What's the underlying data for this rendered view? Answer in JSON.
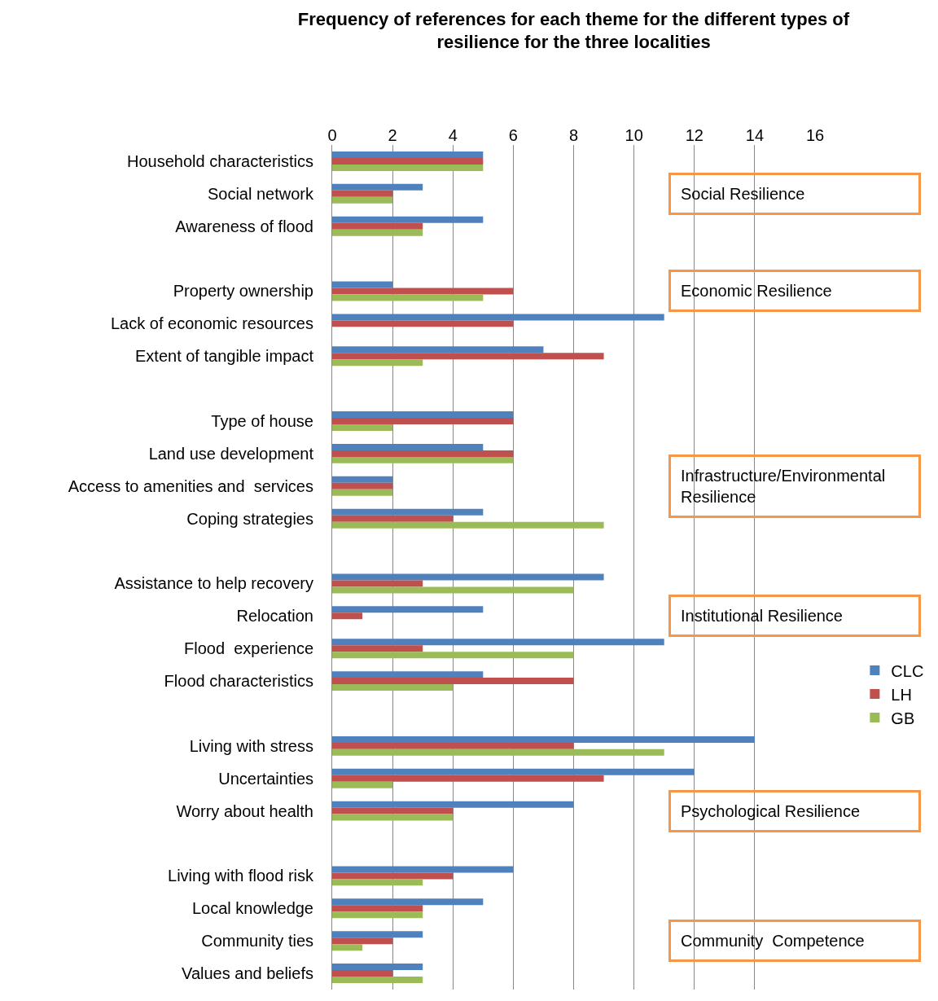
{
  "chart_data": {
    "type": "bar",
    "orientation": "horizontal",
    "title": "Frequency of references for each theme for the different types of resilience for the three localities",
    "categories": [
      "Household characteristics",
      "Social network",
      "Awareness of flood",
      null,
      "Property ownership",
      "Lack of economic resources",
      "Extent of tangible impact",
      null,
      "Type of house",
      "Land use development",
      "Access to amenities and  services",
      "Coping strategies",
      null,
      "Assistance to help recovery",
      "Relocation",
      "Flood  experience",
      "Flood characteristics",
      null,
      "Living with stress",
      "Uncertainties",
      "Worry about health",
      null,
      "Living with flood risk",
      "Local knowledge",
      "Community ties",
      "Values and beliefs"
    ],
    "series": [
      {
        "name": "CLC",
        "color": "#4f81bd",
        "values": [
          5,
          3,
          5,
          null,
          2,
          11,
          7,
          null,
          6,
          5,
          2,
          5,
          null,
          9,
          5,
          11,
          5,
          null,
          14,
          12,
          8,
          null,
          6,
          5,
          3,
          3
        ]
      },
      {
        "name": "LH",
        "color": "#c0504d",
        "values": [
          5,
          2,
          3,
          null,
          6,
          6,
          9,
          null,
          6,
          6,
          2,
          4,
          null,
          3,
          1,
          3,
          8,
          null,
          8,
          9,
          4,
          null,
          4,
          3,
          2,
          2
        ]
      },
      {
        "name": "GB",
        "color": "#9bbb59",
        "values": [
          5,
          2,
          3,
          null,
          5,
          0,
          3,
          null,
          2,
          6,
          2,
          9,
          null,
          8,
          0,
          8,
          4,
          null,
          11,
          2,
          4,
          null,
          3,
          3,
          1,
          3
        ]
      }
    ],
    "xlim": [
      0,
      16
    ],
    "xticks": [
      0,
      2,
      4,
      6,
      8,
      10,
      12,
      14,
      16
    ],
    "grid": "x",
    "legend": "right",
    "annotations": [
      "Social Resilience",
      "Economic Resilience",
      "Infrastructure/Environmental Resilience",
      "Institutional Resilience",
      "Psychological Resilience",
      "Community  Competence"
    ]
  }
}
